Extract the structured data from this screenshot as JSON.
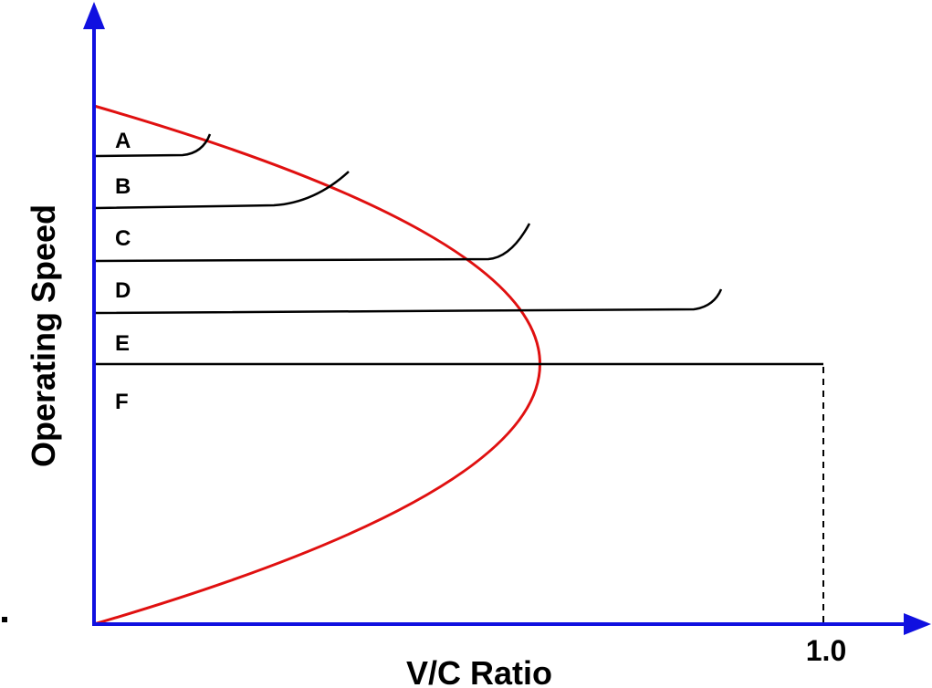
{
  "axes": {
    "x_title": "V/C Ratio",
    "y_title": "Operating Speed",
    "x_tick": "1.0",
    "axis_color": "#1010e0"
  },
  "curve": {
    "color": "#e01010",
    "line_color": "#000000"
  },
  "levels": [
    {
      "label": "A"
    },
    {
      "label": "B"
    },
    {
      "label": "C"
    },
    {
      "label": "D"
    },
    {
      "label": "E"
    },
    {
      "label": "F"
    }
  ]
}
